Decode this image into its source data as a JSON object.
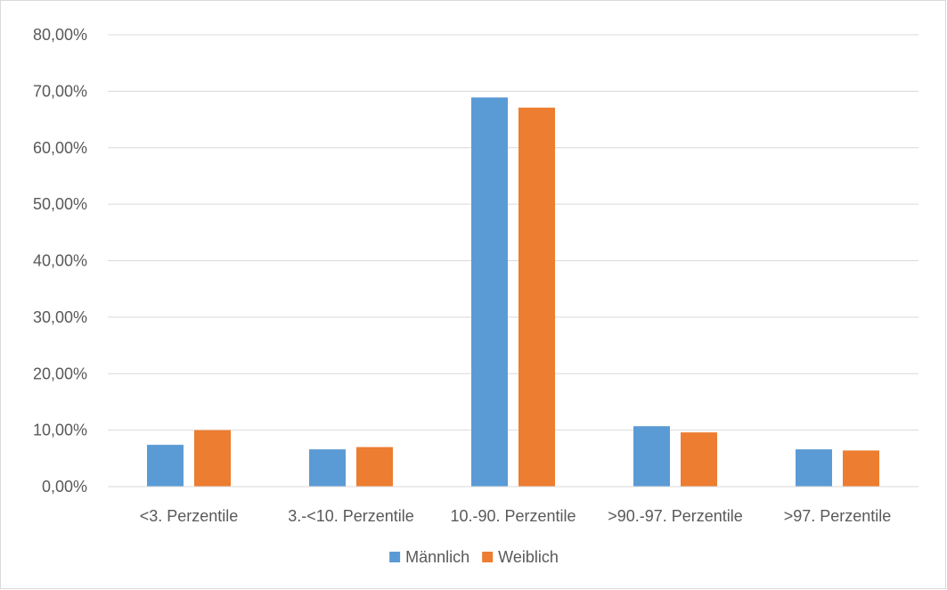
{
  "chart_data": {
    "type": "bar",
    "categories": [
      "<3. Perzentile",
      "3.-<10. Perzentile",
      "10.-90. Perzentile",
      ">90.-97. Perzentile",
      ">97. Perzentile"
    ],
    "series": [
      {
        "name": "Männlich",
        "color": "#5b9bd5",
        "values": [
          7.4,
          6.6,
          68.9,
          10.7,
          6.6
        ]
      },
      {
        "name": "Weiblich",
        "color": "#ed7d31",
        "values": [
          10.0,
          7.0,
          67.1,
          9.6,
          6.4
        ]
      }
    ],
    "y_ticks": [
      "0,00%",
      "10,00%",
      "20,00%",
      "30,00%",
      "40,00%",
      "50,00%",
      "60,00%",
      "70,00%",
      "80,00%"
    ],
    "ylim": [
      0,
      80
    ],
    "y_unit": "%",
    "title": "",
    "xlabel": "",
    "ylabel": "",
    "grid": "horizontal",
    "legend_position": "bottom",
    "gridline_color": "#d9d9d9",
    "axis_line_color": "#d9d9d9",
    "text_color": "#595959"
  }
}
